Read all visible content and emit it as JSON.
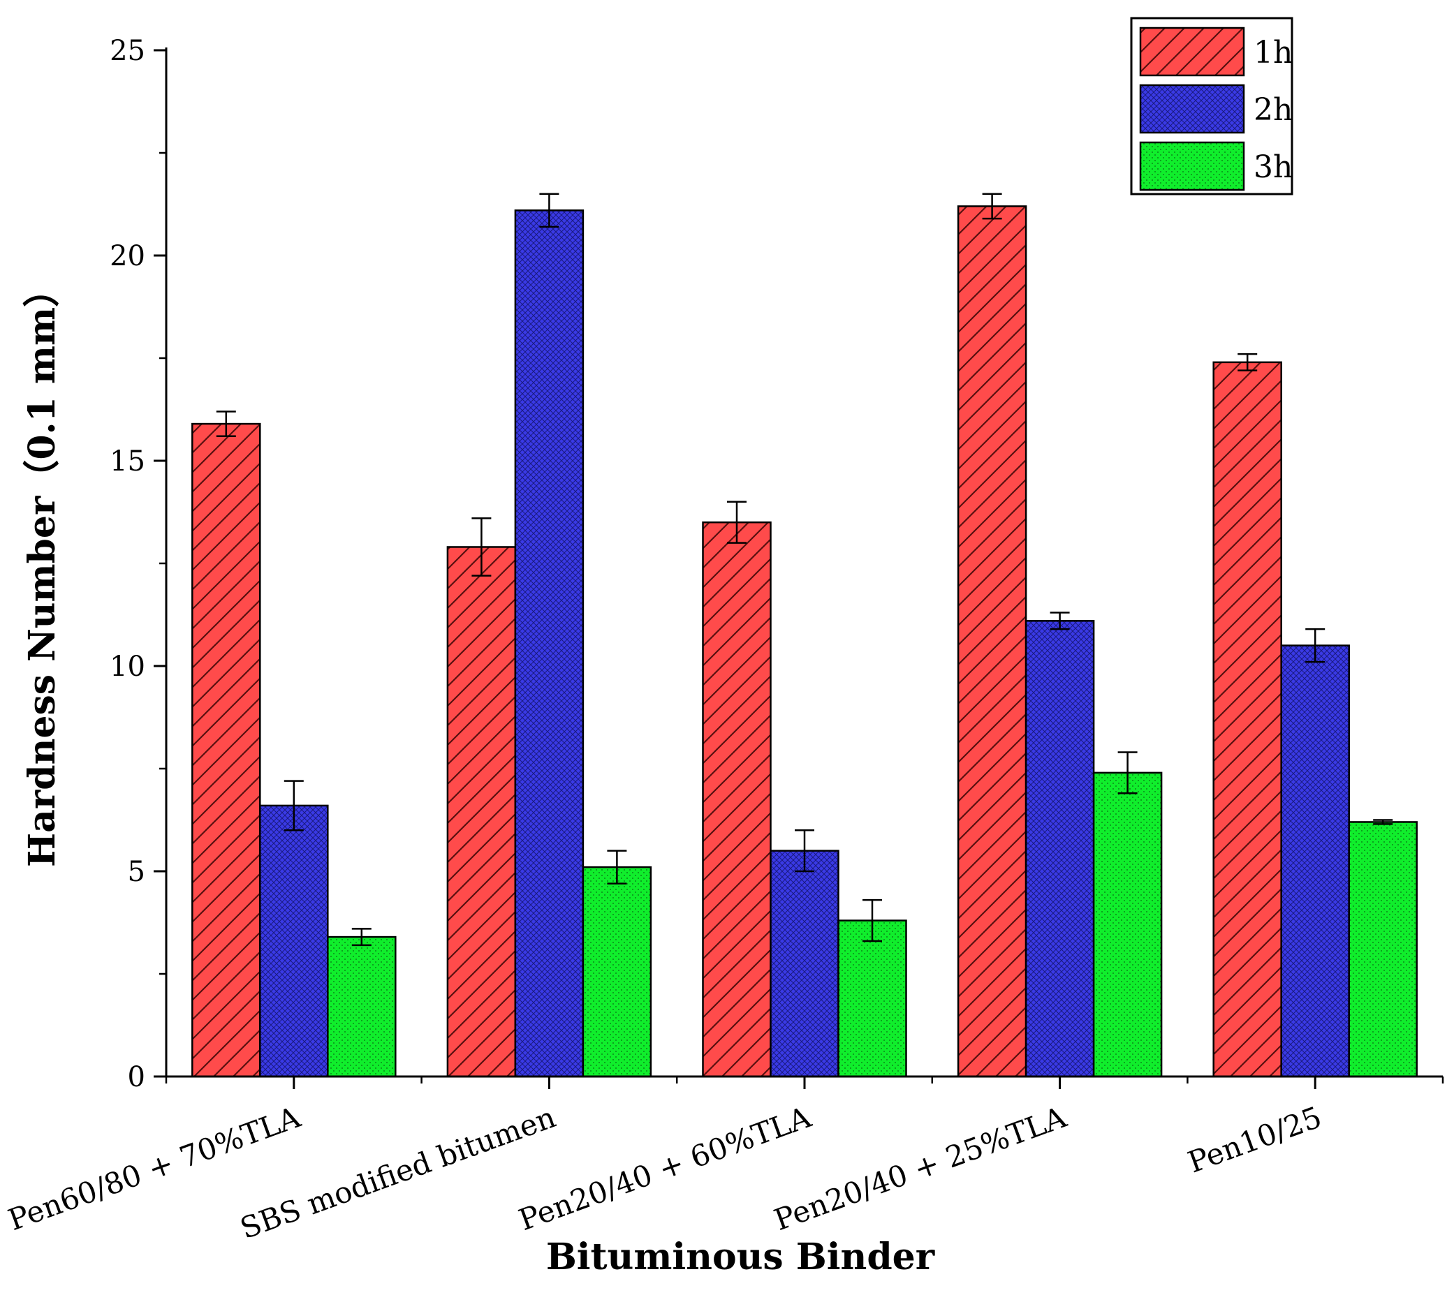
{
  "chart_data": {
    "type": "bar",
    "title": "",
    "xlabel": "Bituminous Binder",
    "ylabel": "Hardness  Number（0.1 mm）",
    "ylim": [
      0,
      25
    ],
    "yticks": [
      0,
      5,
      10,
      15,
      20,
      25
    ],
    "categories": [
      "Pen60/80 + 70%TLA",
      "SBS modified bitumen",
      "Pen20/40 + 60%TLA",
      "Pen20/40 + 25%TLA",
      "Pen10/25"
    ],
    "series": [
      {
        "name": "1h",
        "color": "#ff4b4b",
        "pattern": "diagonal-hatch",
        "values": [
          15.9,
          12.9,
          13.5,
          21.2,
          17.4
        ],
        "errors": [
          0.3,
          0.7,
          0.5,
          0.3,
          0.2
        ]
      },
      {
        "name": "2h",
        "color": "#3a3ae6",
        "pattern": "cross-hatch",
        "values": [
          6.6,
          21.1,
          5.5,
          11.1,
          10.5
        ],
        "errors": [
          0.6,
          0.4,
          0.5,
          0.2,
          0.4
        ]
      },
      {
        "name": "3h",
        "color": "#10ee2c",
        "pattern": "dots",
        "values": [
          3.4,
          5.1,
          3.8,
          7.4,
          6.2
        ],
        "errors": [
          0.2,
          0.4,
          0.5,
          0.5,
          0.05
        ]
      }
    ],
    "legend_position": "top-right"
  }
}
